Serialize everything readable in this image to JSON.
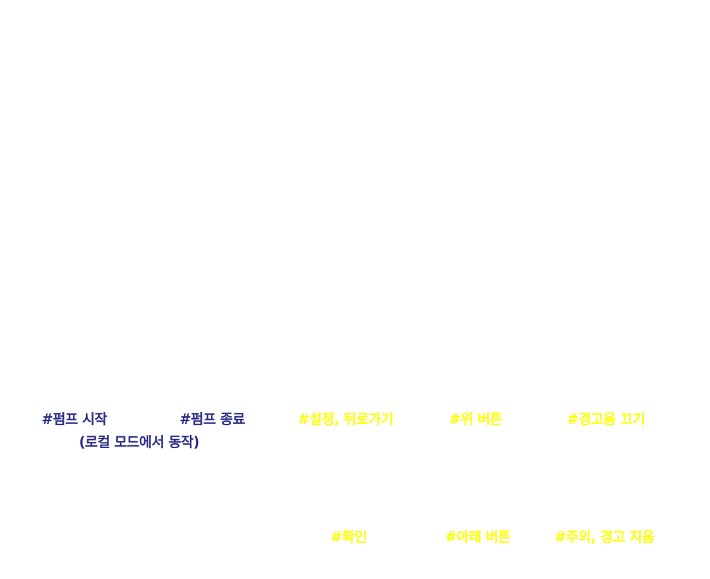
{
  "colors": {
    "pump_labels": "#2b2d84",
    "nav_labels": "#ffff00",
    "background": "#ffffff"
  },
  "labels": {
    "pump_start": "#펌프 시작",
    "local_mode": "(로컬 모드에서 동작)",
    "pump_stop": "#펌프 종료",
    "settings_back": "#설정, 뒤로가기",
    "up_button": "#위 버튼",
    "mute_alarm": "#경고음 끄기",
    "confirm": "#확인",
    "down_button": "#아래 버튼",
    "clear_warning": "#주의, 경고 지움"
  }
}
